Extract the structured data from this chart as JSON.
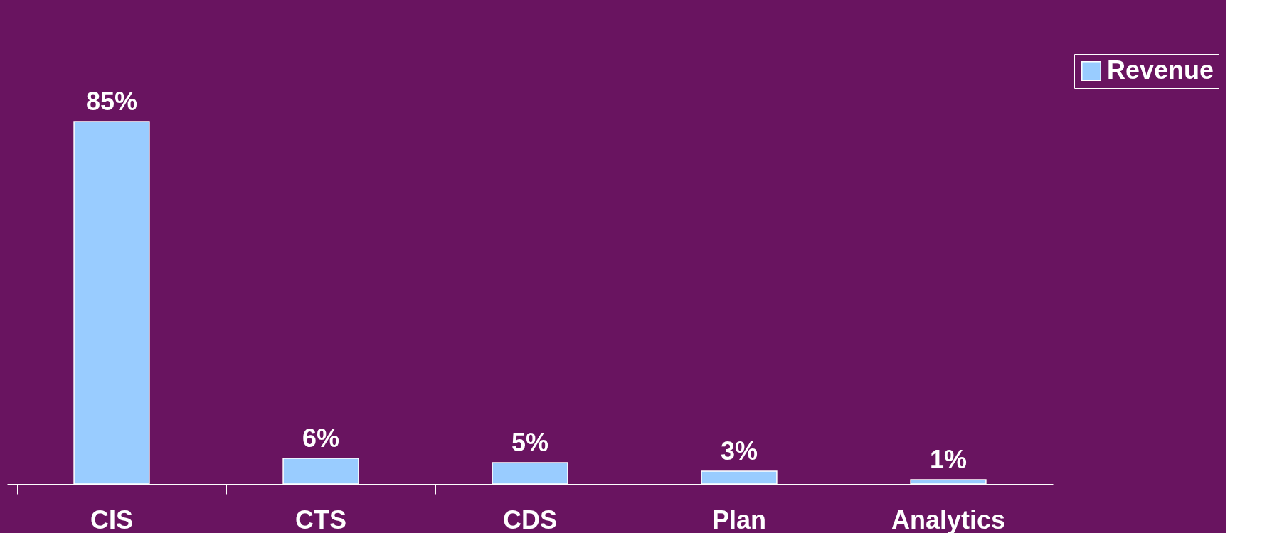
{
  "chart_data": {
    "type": "bar",
    "categories": [
      "CIS",
      "CTS",
      "CDS",
      "Plan",
      "Analytics"
    ],
    "series": [
      {
        "name": "Revenue",
        "color": "#99ccff",
        "values": [
          85,
          6,
          5,
          3,
          1
        ],
        "value_labels": [
          "85%",
          "6%",
          "5%",
          "3%",
          "1%"
        ]
      }
    ],
    "legend": "top right"
  }
}
